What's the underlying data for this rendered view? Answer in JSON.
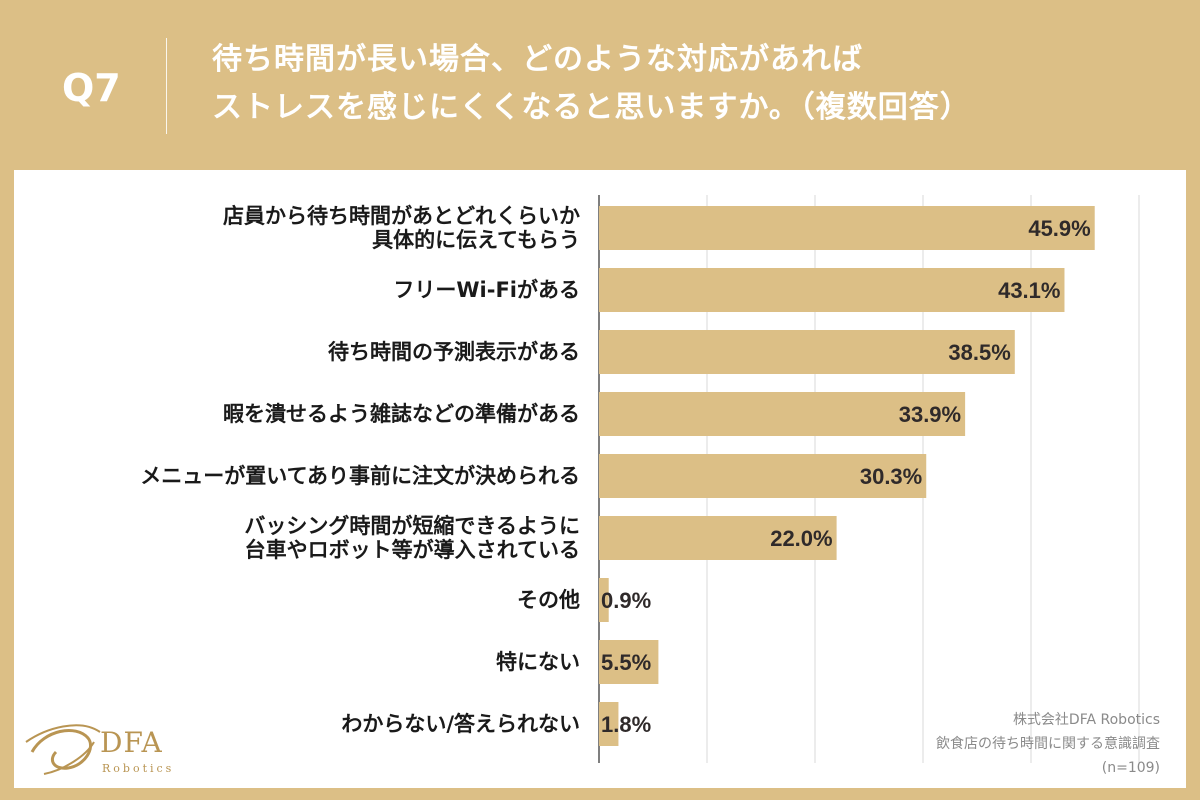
{
  "header": {
    "q_label": "Q7",
    "title_line1": "待ち時間が長い場合、どのような対応があれば",
    "title_line2": "ストレスを感じにくくなると思いますか。（複数回答）"
  },
  "chart_data": {
    "type": "bar",
    "orientation": "horizontal",
    "title": "待ち時間が長い場合、どのような対応があればストレスを感じにくくなると思いますか。（複数回答）",
    "xlim": [
      0,
      50
    ],
    "grid": true,
    "unit": "%",
    "categories": [
      [
        "店員から待ち時間があとどれくらいか",
        "具体的に伝えてもらう"
      ],
      [
        "フリーWi-Fiがある"
      ],
      [
        "待ち時間の予測表示がある"
      ],
      [
        "暇を潰せるよう雑誌などの準備がある"
      ],
      [
        "メニューが置いてあり事前に注文が決められる"
      ],
      [
        "バッシング時間が短縮できるように",
        "台車やロボット等が導入されている"
      ],
      [
        "その他"
      ],
      [
        "特にない"
      ],
      [
        "わからない/答えられない"
      ]
    ],
    "values": [
      45.9,
      43.1,
      38.5,
      33.9,
      30.3,
      22.0,
      0.9,
      5.5,
      1.8
    ],
    "value_labels": [
      "45.9%",
      "43.1%",
      "38.5%",
      "33.9%",
      "30.3%",
      "22.0%",
      "0.9%",
      "5.5%",
      "1.8%"
    ],
    "bar_color": "#dcbf86"
  },
  "logo": {
    "name": "DFA",
    "sub": "Robotics"
  },
  "source": {
    "line1": "株式会社DFA Robotics",
    "line2": "飲食店の待ち時間に関する意識調査",
    "line3": "(n=109)"
  },
  "colors": {
    "background": "#dcbf86",
    "panel": "#ffffff",
    "gold": "#b99553"
  }
}
